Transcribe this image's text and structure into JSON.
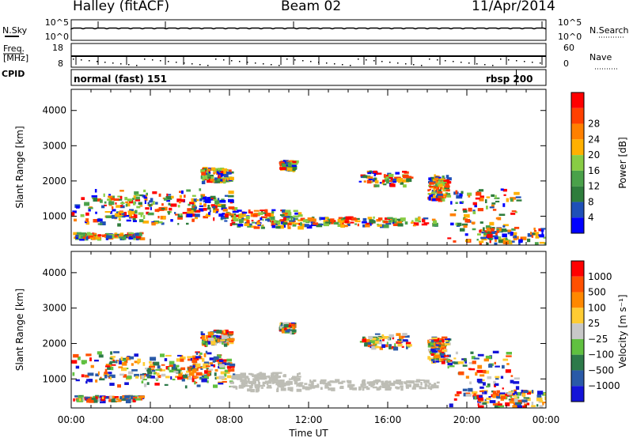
{
  "header": {
    "site": "Halley (fitACF)",
    "beam": "Beam 02",
    "date": "11/Apr/2014"
  },
  "colors": {
    "power_scale": [
      "#0000ff",
      "#1f50b8",
      "#2e7d3c",
      "#4aa14a",
      "#88cc44",
      "#ffb000",
      "#ff8000",
      "#ff4000",
      "#ff0000"
    ],
    "velocity_scale": [
      "#1414d8",
      "#2a5aa8",
      "#2d7a4a",
      "#60c040",
      "#c8c8c8",
      "#ffcc33",
      "#ff8800",
      "#ff5000",
      "#ff0000"
    ],
    "ground_scatter": "#bdbdb5"
  },
  "chart_data": [
    {
      "type": "line",
      "name": "status_panel_sky_search",
      "left_label": "N.Sky",
      "right_label": "N.Search",
      "left_ticks": [
        "10^5",
        "10^0"
      ],
      "right_ticks": [
        "10^5",
        "10^0"
      ]
    },
    {
      "type": "line",
      "name": "status_panel_freq_nave",
      "left_label": "Freq. [MHz]",
      "right_label": "Nave",
      "left_ticks": [
        "18",
        "8"
      ],
      "right_ticks": [
        "60",
        "0"
      ]
    },
    {
      "type": "table",
      "name": "cpid_panel",
      "label": "CPID",
      "entries": [
        {
          "text": "normal (fast) 151",
          "from_hour": 0,
          "to_hour": 22.5
        },
        {
          "text": "rbsp 200",
          "from_hour": 22.5,
          "to_hour": 24
        }
      ]
    },
    {
      "type": "heatmap",
      "name": "power",
      "ylabel": "Slant Range [km]",
      "yticks": [
        1000,
        2000,
        3000,
        4000
      ],
      "ylim": [
        180,
        4600
      ],
      "colorbar_label": "Power [dB]",
      "colorbar_ticks": [
        4,
        8,
        12,
        16,
        20,
        24,
        28
      ]
    },
    {
      "type": "heatmap",
      "name": "velocity",
      "xlabel": "Time UT",
      "ylabel": "Slant Range [km]",
      "xticks": [
        "00:00",
        "04:00",
        "08:00",
        "12:00",
        "16:00",
        "20:00",
        "00:00"
      ],
      "xlim": [
        0,
        24
      ],
      "yticks": [
        1000,
        2000,
        3000,
        4000
      ],
      "ylim": [
        180,
        4600
      ],
      "colorbar_label": "Velocity [m s⁻¹]",
      "colorbar_ticks": [
        "1000",
        "500",
        "100",
        "25",
        "−25",
        "−100",
        "−500",
        "−1000"
      ]
    }
  ]
}
